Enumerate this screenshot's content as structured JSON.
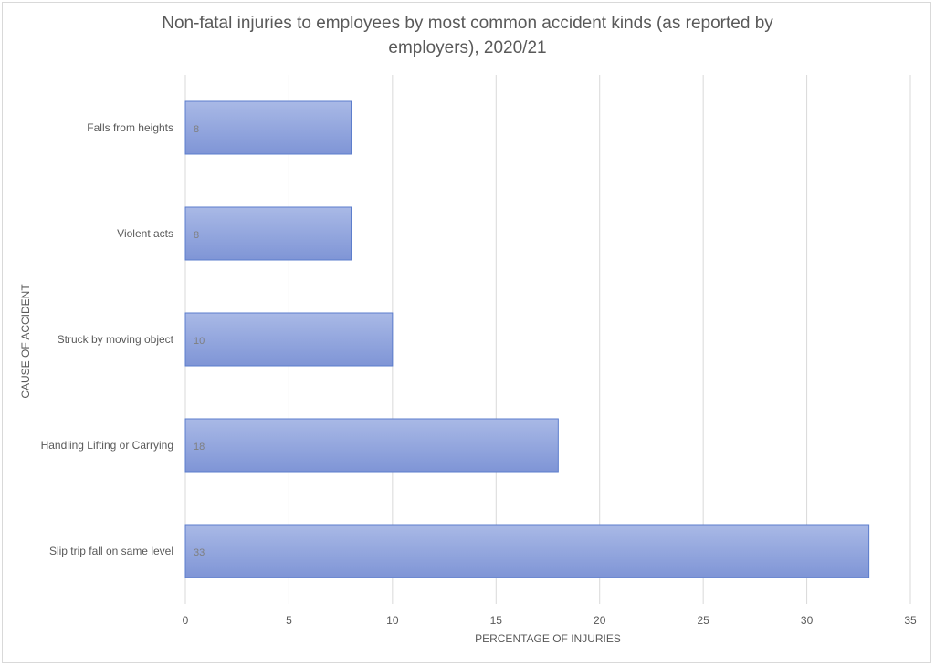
{
  "chart_data": {
    "type": "bar",
    "orientation": "horizontal",
    "title_line1": "Non-fatal injuries to employees by most common accident kinds (as reported by",
    "title_line2": "employers), 2020/21",
    "xlabel": "PERCENTAGE OF  INJURIES",
    "ylabel": "CAUSE OF ACCIDENT",
    "categories": [
      "Falls from heights",
      "Violent acts",
      "Struck by moving object",
      "Handling Lifting or Carrying",
      "Slip trip fall on same level"
    ],
    "values": [
      8,
      8,
      10,
      18,
      33
    ],
    "xlim": [
      0,
      35
    ],
    "xticks": [
      0,
      5,
      10,
      15,
      20,
      25,
      30,
      35
    ],
    "grid": "vertical",
    "data_labels": "inside-base",
    "bar_color": "#8fa3dc",
    "bar_border": "#5b7ccc"
  }
}
